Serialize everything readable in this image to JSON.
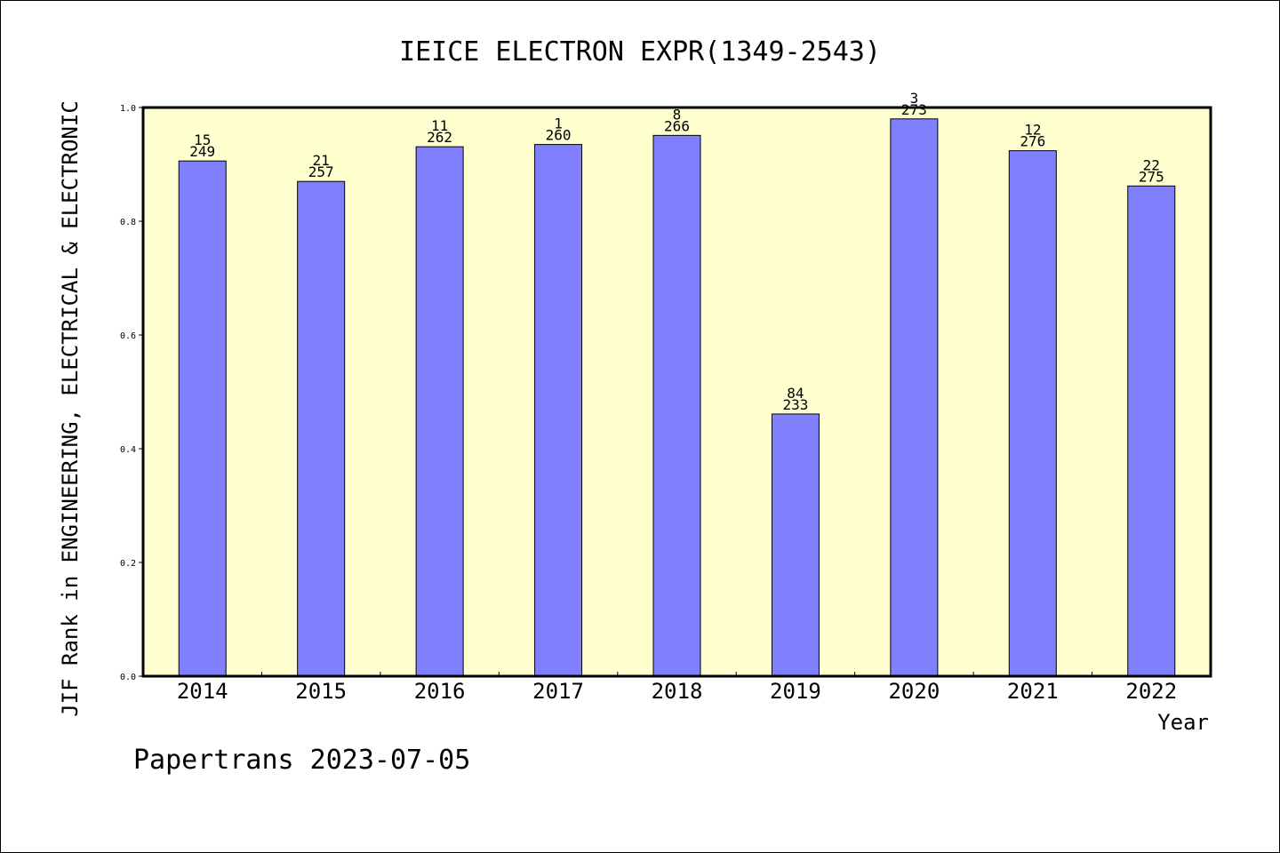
{
  "footer": {
    "credit": "Papertrans 2023-07-05"
  },
  "chart_data": {
    "type": "bar",
    "title": "IEICE ELECTRON EXPR(1349-2543)",
    "xlabel": "Year",
    "ylabel": "JIF Rank in ENGINEERING, ELECTRICAL & ELECTRONIC",
    "ylim": [
      0,
      1.0
    ],
    "yticks": [
      "0.0",
      "0.2",
      "0.4",
      "0.6",
      "0.8",
      "1.0"
    ],
    "grid": false,
    "categories": [
      "2014",
      "2015",
      "2016",
      "2017",
      "2018",
      "2019",
      "2020",
      "2021",
      "2022"
    ],
    "values": [
      0.906,
      0.87,
      0.931,
      0.935,
      0.951,
      0.461,
      0.98,
      0.924,
      0.862
    ],
    "ranks": [
      "15",
      "21",
      "11",
      "1",
      "8",
      "84",
      "3",
      "12",
      "22"
    ],
    "totals": [
      "249",
      "257",
      "262",
      "260",
      "266",
      "233",
      "273",
      "276",
      "275"
    ],
    "colors": {
      "plot_background": "#ffffd0",
      "bar_fill": "#8080ff",
      "bar_stroke": "#000000",
      "axis": "#000000"
    }
  }
}
